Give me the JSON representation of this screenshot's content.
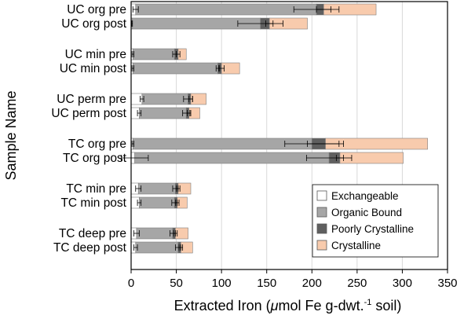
{
  "colors": {
    "exchangeable": "#ffffff",
    "organic_bound": "#a6a6a6",
    "poorly_crystalline": "#5f5f5f",
    "crystalline": "#f8cbad",
    "gridline": "#d9d9d9",
    "bar_edge": "#7f7f7f"
  },
  "chart_data": {
    "type": "bar",
    "orientation": "horizontal",
    "stacked": true,
    "xlabel_main": "Extracted Iron (",
    "xlabel_mu": "μ",
    "xlabel_mid": "mol Fe g-dwt.",
    "xlabel_sup": "-1",
    "xlabel_end": " soil)",
    "ylabel": "Sample Name",
    "xlim": [
      0,
      350
    ],
    "xticks": [
      "0",
      "50",
      "100",
      "150",
      "200",
      "250",
      "300",
      "350"
    ],
    "grid": "vertical",
    "legend_position": "bottom-right",
    "categories": [
      "UC org pre",
      "UC org post",
      "UC min pre",
      "UC min post",
      "UC perm pre",
      "UC perm post",
      "TC org pre",
      "TC org post",
      "TC min pre",
      "TC min post",
      "TC deep pre",
      "TC deep post"
    ],
    "groups": [
      [
        0,
        1
      ],
      [
        2,
        3
      ],
      [
        4,
        5
      ],
      [
        6,
        7
      ],
      [
        8,
        9
      ],
      [
        10,
        11
      ]
    ],
    "series": [
      {
        "name": "Exchangeable",
        "key": "exchangeable",
        "values": [
          5,
          1,
          2,
          2,
          12,
          9,
          2,
          4,
          8,
          9,
          6,
          5
        ],
        "errors": [
          3,
          0.5,
          1,
          1,
          2,
          2,
          1,
          15,
          3,
          2,
          3,
          2
        ]
      },
      {
        "name": "Organic Bound",
        "key": "organic_bound",
        "values": [
          200,
          142,
          46,
          94,
          51,
          52,
          198,
          215,
          41,
          39,
          40,
          47
        ],
        "errors": [
          25,
          25,
          2,
          2,
          5,
          4,
          30,
          25,
          3,
          3,
          3,
          3
        ]
      },
      {
        "name": "Poorly Crystalline",
        "key": "poorly_crystalline",
        "values": [
          8,
          10,
          4,
          4,
          3,
          3,
          15,
          12,
          3,
          3,
          3,
          3
        ],
        "errors": [
          8,
          4,
          2,
          3,
          2,
          2,
          20,
          4,
          2,
          2,
          2,
          2
        ]
      },
      {
        "name": "Crystalline",
        "key": "crystalline",
        "values": [
          58,
          42,
          9,
          20,
          17,
          12,
          113,
          70,
          14,
          11,
          14,
          13
        ]
      }
    ]
  }
}
